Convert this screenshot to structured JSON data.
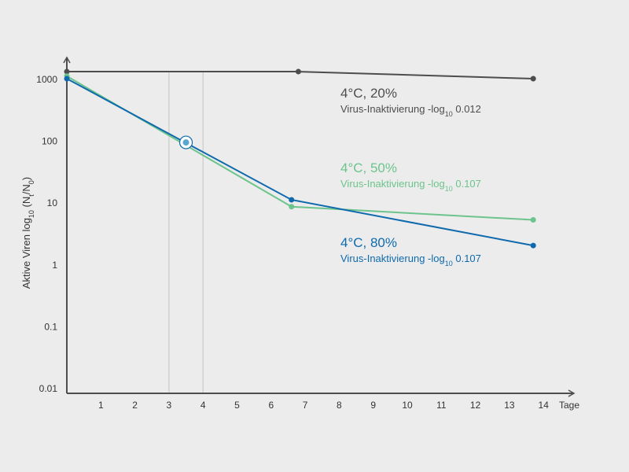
{
  "chart_data": {
    "type": "line",
    "x_ticks": [
      "1",
      "2",
      "3",
      "4",
      "5",
      "6",
      "7",
      "8",
      "9",
      "10",
      "11",
      "12",
      "13",
      "14"
    ],
    "x_unit_label": "Tage",
    "y_ticks": [
      "0.01",
      "0.1",
      "1",
      "10",
      "100",
      "1000"
    ],
    "y_scale": "log",
    "xlim": [
      0,
      14.9
    ],
    "ylim": [
      0.01,
      2000
    ],
    "ylabel": {
      "main": "Aktive Viren  log",
      "sub1": "10",
      "mid": "  (N",
      "sub2": "t",
      "slash": "/N",
      "sub3": "0",
      "end": ")"
    },
    "highlight_band": [
      3,
      4
    ],
    "series": [
      {
        "name": "4°C, 20%",
        "color": "#4d4d4d",
        "points": [
          [
            0,
            1300
          ],
          [
            6.8,
            1300
          ],
          [
            13.7,
            1000
          ]
        ],
        "annotation": {
          "title": "4°C, 20%",
          "sub_prefix": "Virus-Inaktivierung -log",
          "sub_sub": "10",
          "sub_value": " 0.012"
        }
      },
      {
        "name": "4°C, 50%",
        "color": "#6cc48c",
        "points": [
          [
            0,
            1100
          ],
          [
            6.6,
            8.5
          ],
          [
            13.7,
            5.2
          ]
        ],
        "annotation": {
          "title": "4°C, 50%",
          "sub_prefix": "Virus-Inaktivierung -log",
          "sub_sub": "10",
          "sub_value": " 0.107"
        }
      },
      {
        "name": "4°C, 80%",
        "color": "#0e6aad",
        "points": [
          [
            0,
            1000
          ],
          [
            6.6,
            11
          ],
          [
            13.7,
            2.0
          ]
        ],
        "annotation": {
          "title": "4°C, 80%",
          "sub_prefix": "Virus-Inaktivierung -log",
          "sub_sub": "10",
          "sub_value": " 0.107"
        }
      }
    ],
    "marker": {
      "x": 3.5,
      "y": 93
    }
  }
}
